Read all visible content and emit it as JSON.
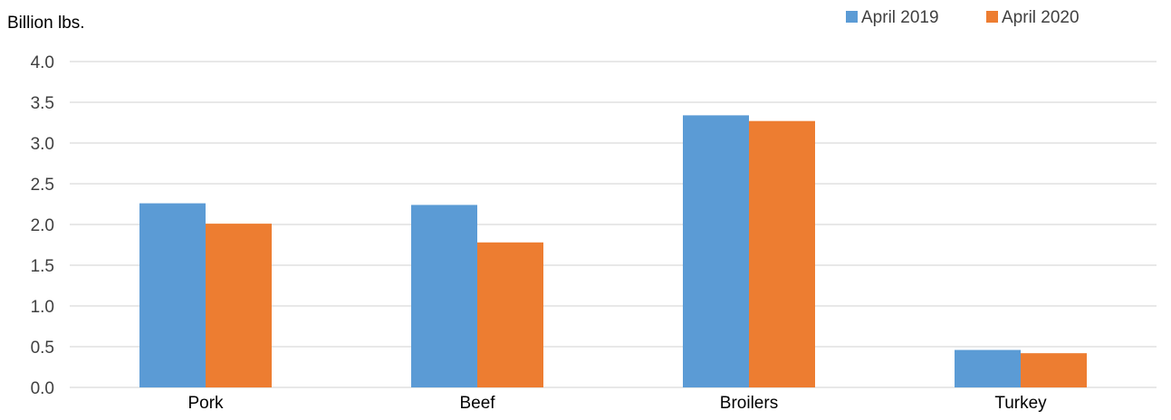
{
  "chart_data": {
    "type": "bar",
    "title": "",
    "xlabel": "",
    "ylabel": "Billion lbs.",
    "ylim": [
      0,
      4.0
    ],
    "yticks": [
      "0.0",
      "0.5",
      "1.0",
      "1.5",
      "2.0",
      "2.5",
      "3.0",
      "3.5",
      "4.0"
    ],
    "grid": true,
    "legend_position": "top-right",
    "categories": [
      "Pork",
      "Beef",
      "Broilers",
      "Turkey"
    ],
    "series": [
      {
        "name": "April 2019",
        "color": "#5b9bd5",
        "values": [
          2.26,
          2.24,
          3.34,
          0.46
        ]
      },
      {
        "name": "April 2020",
        "color": "#ed7d31",
        "values": [
          2.01,
          1.78,
          3.27,
          0.42
        ]
      }
    ]
  }
}
